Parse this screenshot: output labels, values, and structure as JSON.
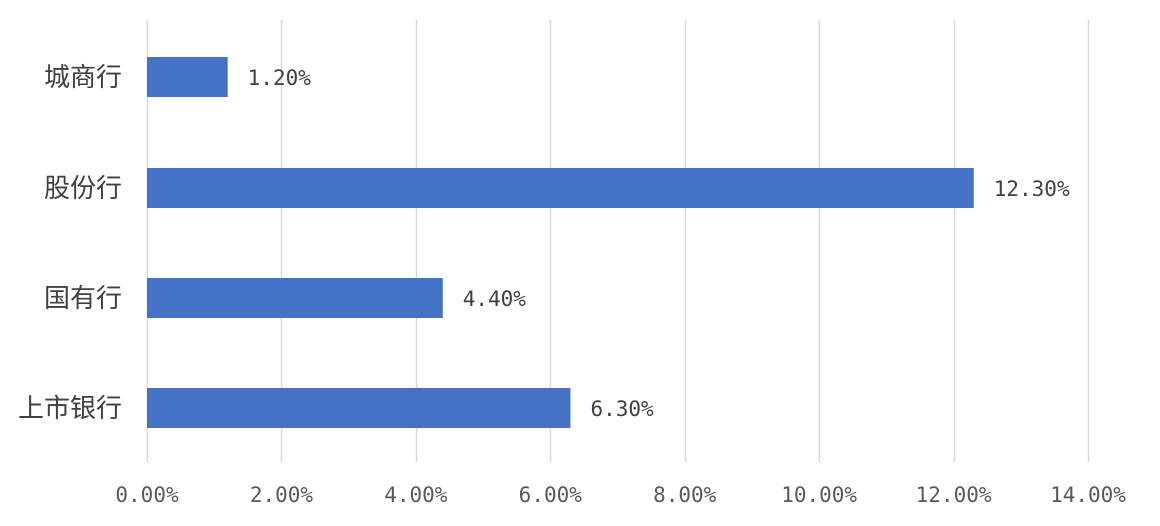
{
  "chart_data": {
    "type": "bar",
    "orientation": "horizontal",
    "categories": [
      "城商行",
      "股份行",
      "国有行",
      "上市银行"
    ],
    "values": [
      1.2,
      12.3,
      4.4,
      6.3
    ],
    "value_labels": [
      "1.20%",
      "12.30%",
      "4.40%",
      "6.30%"
    ],
    "xlim": [
      0,
      14
    ],
    "x_ticks": [
      0,
      2,
      4,
      6,
      8,
      10,
      12,
      14
    ],
    "x_tick_labels": [
      "0.00%",
      "2.00%",
      "4.00%",
      "6.00%",
      "8.00%",
      "10.00%",
      "12.00%",
      "14.00%"
    ],
    "grid": true,
    "legend": "none",
    "bar_color": "#4472C4",
    "grid_color": "#D9D9D9"
  }
}
